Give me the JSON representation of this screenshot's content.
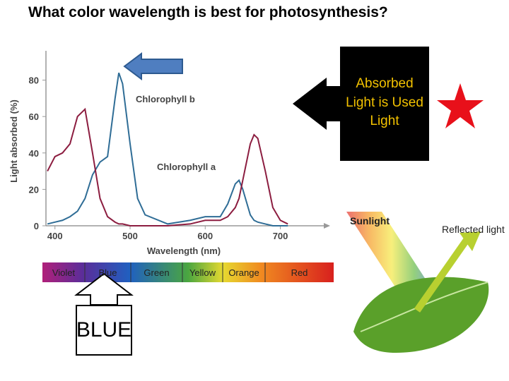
{
  "title": "What color wavelength is best for photosynthesis?",
  "chart_data": {
    "type": "line",
    "xlabel": "Wavelength (nm)",
    "ylabel": "Light absorbed (%)",
    "x": [
      390,
      400,
      410,
      420,
      430,
      440,
      450,
      460,
      470,
      480,
      485,
      490,
      500,
      510,
      520,
      550,
      580,
      600,
      620,
      630,
      640,
      645,
      650,
      660,
      665,
      670,
      680,
      690,
      700,
      710
    ],
    "series": [
      {
        "name": "Chlorophyll b",
        "color": "#2f6d96",
        "values": [
          1,
          2,
          3,
          5,
          8,
          15,
          28,
          35,
          38,
          70,
          84,
          78,
          45,
          15,
          6,
          1,
          3,
          5,
          5,
          12,
          23,
          25,
          20,
          6,
          3,
          2,
          1,
          0,
          0,
          0
        ]
      },
      {
        "name": "Chlorophyll a",
        "color": "#8c1d40",
        "values": [
          30,
          38,
          40,
          45,
          60,
          64,
          40,
          15,
          5,
          2,
          1,
          1,
          0,
          0,
          0,
          0,
          1,
          3,
          3,
          5,
          10,
          15,
          25,
          45,
          50,
          48,
          30,
          10,
          3,
          1
        ]
      }
    ],
    "xlim": [
      388,
      755
    ],
    "ylim": [
      0,
      93
    ],
    "xticks": [
      400,
      500,
      600,
      700
    ],
    "yticks": [
      0,
      20,
      40,
      60,
      80
    ]
  },
  "spectrum": [
    "Violet",
    "Blue",
    "Green",
    "Yellow",
    "Orange",
    "Red"
  ],
  "callout": "Absorbed Light is Used Light",
  "answer": "BLUE",
  "illustration": {
    "sunlight": "Sunlight",
    "reflected": "Reflected light"
  }
}
